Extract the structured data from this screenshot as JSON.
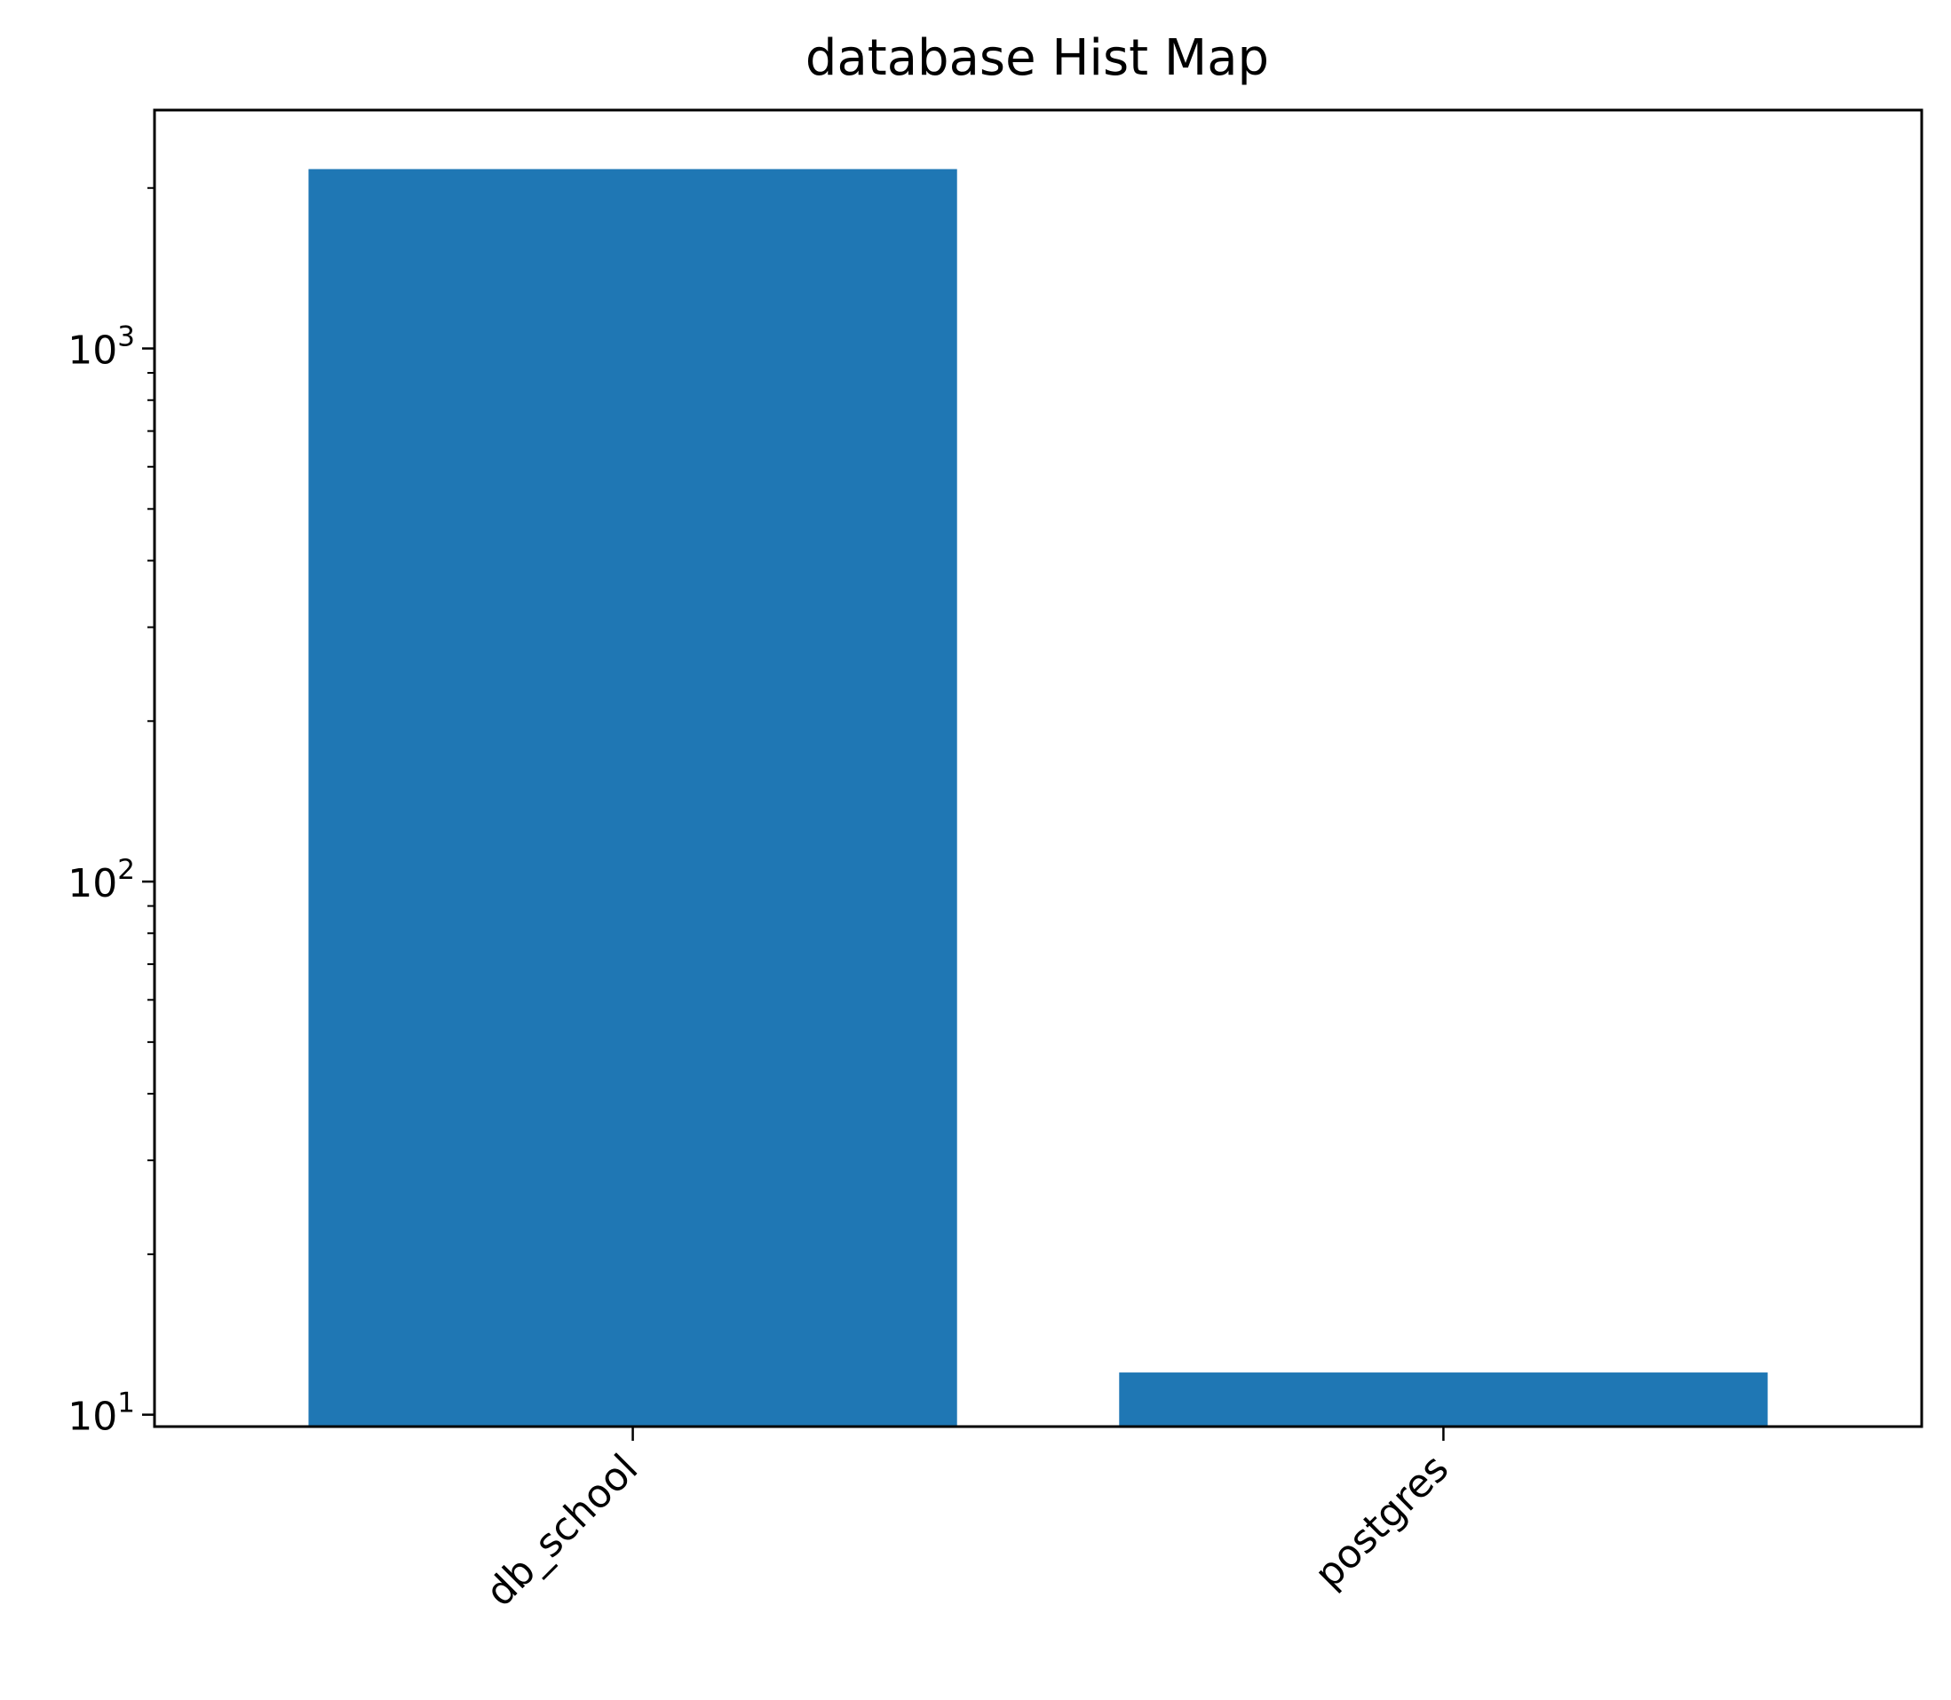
{
  "chart_data": {
    "type": "bar",
    "title": "database Hist Map",
    "xlabel": "",
    "ylabel": "",
    "categories": [
      "db_school",
      "postgres"
    ],
    "values": [
      2170,
      12
    ],
    "y_scale": "log",
    "ylim": [
      9.5,
      2800
    ],
    "y_ticks": [
      {
        "value": 10,
        "base": "10",
        "exponent": "1"
      },
      {
        "value": 100,
        "base": "10",
        "exponent": "2"
      },
      {
        "value": 1000,
        "base": "10",
        "exponent": "3"
      }
    ],
    "x_tick_label_rotation": "45° (right-aligned)",
    "grid": false,
    "legend": "none",
    "bar_color": "#1f77b4"
  }
}
